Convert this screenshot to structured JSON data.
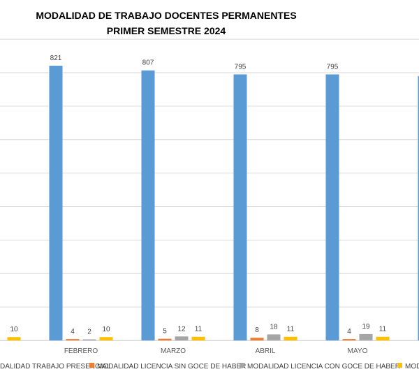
{
  "chart_data": {
    "type": "bar",
    "title": "MODALIDAD DE TRABAJO DOCENTES PERMANENTES",
    "subtitle": "PRIMER SEMESTRE 2024",
    "categories": [
      "",
      "FEBRERO",
      "MARZO",
      "ABRIL",
      "MAYO",
      ""
    ],
    "series": [
      {
        "name": "MODALIDAD TRABAJO PRESENCIAL",
        "color": "#5B9BD5",
        "values": [
          null,
          821,
          807,
          795,
          795,
          790
        ]
      },
      {
        "name": "MODALIDAD LICENCIA SIN GOCE DE HABER",
        "color": "#ED7D31",
        "values": [
          null,
          4,
          5,
          8,
          4,
          null
        ]
      },
      {
        "name": "MODALIDAD LICENCIA CON GOCE DE HABER",
        "color": "#A5A5A5",
        "values": [
          null,
          2,
          12,
          18,
          19,
          null
        ]
      },
      {
        "name": "MODA",
        "color": "#FFC000",
        "values": [
          10,
          10,
          11,
          11,
          11,
          null
        ]
      }
    ],
    "legend_first_partial": "DALIDAD TRABAJO PRESENCIAL",
    "ylim": [
      0,
      900
    ],
    "grid": true,
    "legend_position": "bottom"
  }
}
